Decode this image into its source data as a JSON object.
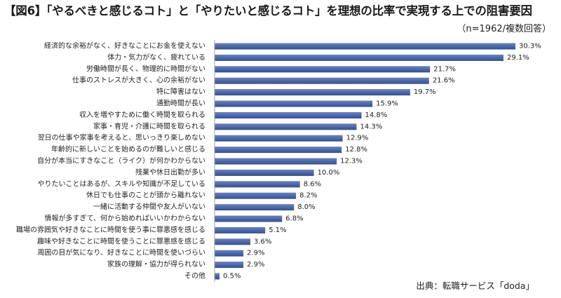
{
  "chart_data": {
    "type": "bar",
    "orientation": "horizontal",
    "title": "【図6】「やるべきと感じるコト」と「やりたいと感じるコト」を理想の比率で実現する上での阻害要因",
    "subtitle": "（n=1962/複数回答）",
    "source": "出典：転職サービス「doda」",
    "unit": "%",
    "xlabel": "",
    "ylabel": "",
    "grid": false,
    "legend": "none",
    "categories": [
      "経済的な余裕がなく、好きなことにお金を使えない",
      "体力・気力がなく、疲れている",
      "労働時間が長く、物理的に時間がない",
      "仕事のストレスが大きく、心の余裕がない",
      "特に障害はない",
      "通勤時間が長い",
      "収入を増やすために働く時間を取られる",
      "家事・育児・介護に時間を取られる",
      "翌日の仕事や家事を考えると、思いっきり楽しめない",
      "年齢的に新しいことを始めるのが難しいと感じる",
      "自分が本当にすきなこと（ライク）が何かわからない",
      "残業や休日出勤が多い",
      "やりたいことはあるが、スキルや知識が不足している",
      "休日でも仕事のことが頭から離れない",
      "一緒に活動する仲間や友人がいない",
      "情報が多すぎて、何から始めればいいかわからない",
      "職場の雰囲気や好きなことに時間を使う事に罪悪感を感じる",
      "趣味や好きなことに時間を使うことに罪悪感を感じる",
      "周囲の目が気になり、好きなことに時間を使いづらい",
      "家族の理解・協力が得られない",
      "その他"
    ],
    "values": [
      30.3,
      29.1,
      21.7,
      21.6,
      19.7,
      15.9,
      14.8,
      14.3,
      12.9,
      12.8,
      12.3,
      10.0,
      8.6,
      8.2,
      8.0,
      6.8,
      5.1,
      3.6,
      2.9,
      2.9,
      0.5
    ],
    "data_labels": [
      "30.3%",
      "29.1%",
      "21.7%",
      "21.6%",
      "19.7%",
      "15.9%",
      "14.8%",
      "14.3%",
      "12.9%",
      "12.8%",
      "12.3%",
      "10.0%",
      "8.6%",
      "8.2%",
      "8.0%",
      "6.8%",
      "5.1%",
      "3.6%",
      "2.9%",
      "2.9%",
      "0.5%"
    ],
    "bar_colors": {
      "light": "#6a82bf",
      "dark": "#34508f"
    },
    "axis_color": "#a0a0a0",
    "text_color": "#222222"
  }
}
